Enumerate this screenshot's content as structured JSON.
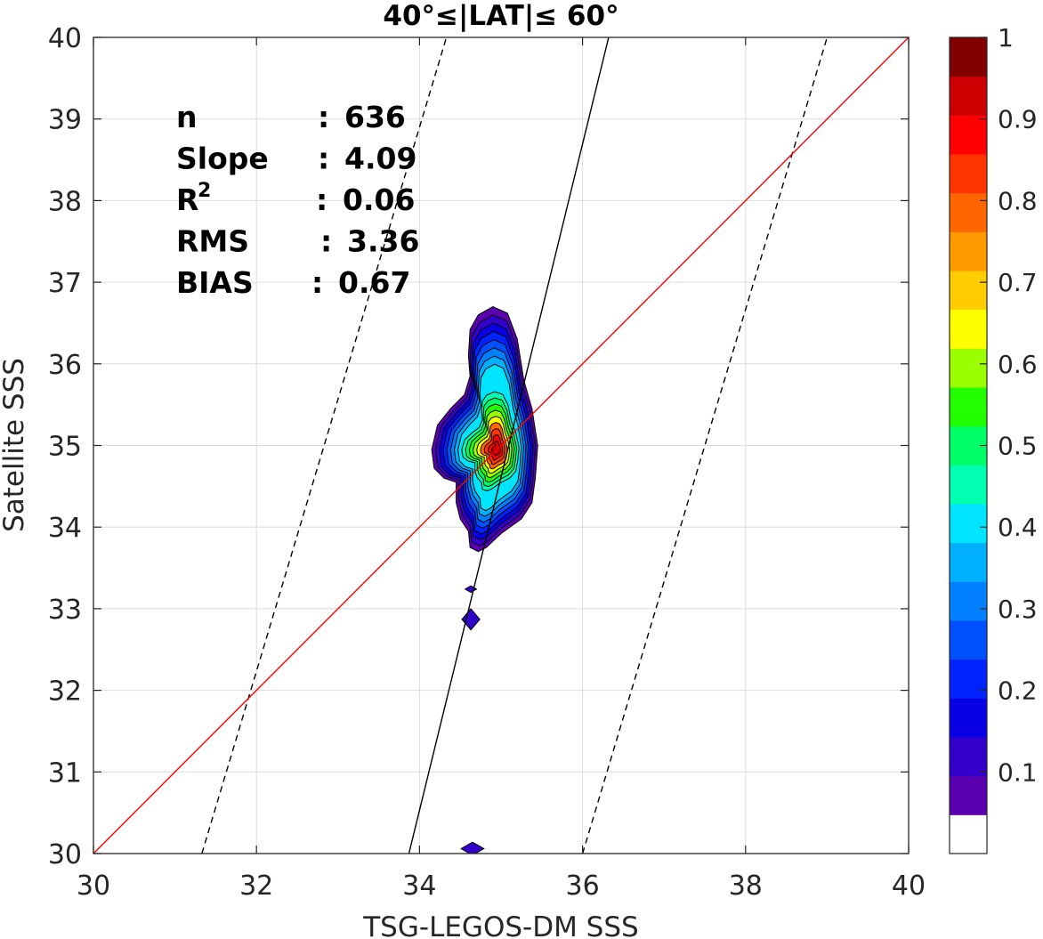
{
  "chart_data": {
    "type": "contour-scatter",
    "title": "40°≤|LAT|≤ 60°",
    "xlabel": "TSG-LEGOS-DM SSS",
    "ylabel": "Satellite SSS",
    "xlim": [
      30,
      40
    ],
    "ylim": [
      30,
      40
    ],
    "xticks": [
      "30",
      "32",
      "34",
      "36",
      "38",
      "40"
    ],
    "yticks": [
      "30",
      "31",
      "32",
      "33",
      "34",
      "35",
      "36",
      "37",
      "38",
      "39",
      "40"
    ],
    "grid": true,
    "stats": [
      {
        "name": "n",
        "sep": ": ",
        "value": "636"
      },
      {
        "name": "Slope",
        "sep": ": ",
        "value": "4.09"
      },
      {
        "name": "R",
        "sup": "2",
        "sep": ": ",
        "value": "0.06"
      },
      {
        "name": "RMS",
        "sep": ": ",
        "value": "3.36"
      },
      {
        "name": "BIAS",
        "sep": ": ",
        "value": "0.67"
      }
    ],
    "lines": {
      "identity": {
        "color": "#ff0000",
        "x": [
          30,
          40
        ],
        "y": [
          30,
          40
        ]
      },
      "fit": {
        "color": "#000000",
        "x": [
          33.87,
          36.32
        ],
        "y": [
          30,
          40
        ]
      },
      "dashed_lower": {
        "color": "#000000",
        "x": [
          36.0,
          39.0
        ],
        "y": [
          30,
          40
        ]
      },
      "dashed_upper": {
        "color": "#000000",
        "x": [
          31.33,
          34.33
        ],
        "y": [
          30,
          40
        ]
      }
    },
    "density": {
      "center": [
        34.95,
        34.95
      ],
      "levels": [
        0.05,
        0.1,
        0.15,
        0.2,
        0.25,
        0.3,
        0.35,
        0.4,
        0.45,
        0.5,
        0.55,
        0.6,
        0.65,
        0.7,
        0.75,
        0.8,
        0.85,
        0.9,
        0.95
      ],
      "main_outline": [
        [
          34.62,
          36.42
        ],
        [
          34.72,
          36.6
        ],
        [
          34.9,
          36.7
        ],
        [
          35.08,
          36.62
        ],
        [
          35.2,
          36.3
        ],
        [
          35.28,
          35.8
        ],
        [
          35.38,
          35.45
        ],
        [
          35.45,
          35.0
        ],
        [
          35.42,
          34.6
        ],
        [
          35.38,
          34.3
        ],
        [
          35.25,
          34.1
        ],
        [
          35.0,
          33.92
        ],
        [
          34.82,
          33.75
        ],
        [
          34.72,
          33.7
        ],
        [
          34.62,
          33.75
        ],
        [
          34.6,
          33.95
        ],
        [
          34.5,
          34.1
        ],
        [
          34.45,
          34.3
        ],
        [
          34.45,
          34.55
        ],
        [
          34.3,
          34.6
        ],
        [
          34.18,
          34.72
        ],
        [
          34.15,
          34.95
        ],
        [
          34.22,
          35.25
        ],
        [
          34.38,
          35.45
        ],
        [
          34.55,
          35.62
        ],
        [
          34.62,
          35.85
        ],
        [
          34.6,
          36.1
        ]
      ],
      "blobs": [
        {
          "cx": 34.63,
          "cy": 32.87,
          "rx": 0.11,
          "ry": 0.13
        },
        {
          "cx": 34.63,
          "cy": 33.24,
          "rx": 0.07,
          "ry": 0.04
        },
        {
          "cx": 34.65,
          "cy": 30.06,
          "rx": 0.14,
          "ry": 0.08
        }
      ]
    },
    "colorbar": {
      "ticks": [
        "0.1",
        "0.2",
        "0.3",
        "0.4",
        "0.5",
        "0.6",
        "0.7",
        "0.8",
        "0.9",
        "1"
      ],
      "colors": [
        "#ffffff",
        "#5a00b0",
        "#3300cc",
        "#0a00e6",
        "#0022ff",
        "#0050ff",
        "#0080ff",
        "#00b0ff",
        "#00e5ff",
        "#00ffb0",
        "#00ff66",
        "#22ff00",
        "#99ff00",
        "#ffff00",
        "#ffcc00",
        "#ff9900",
        "#ff6600",
        "#ff3300",
        "#ff0000",
        "#cc0000",
        "#800000"
      ]
    }
  }
}
